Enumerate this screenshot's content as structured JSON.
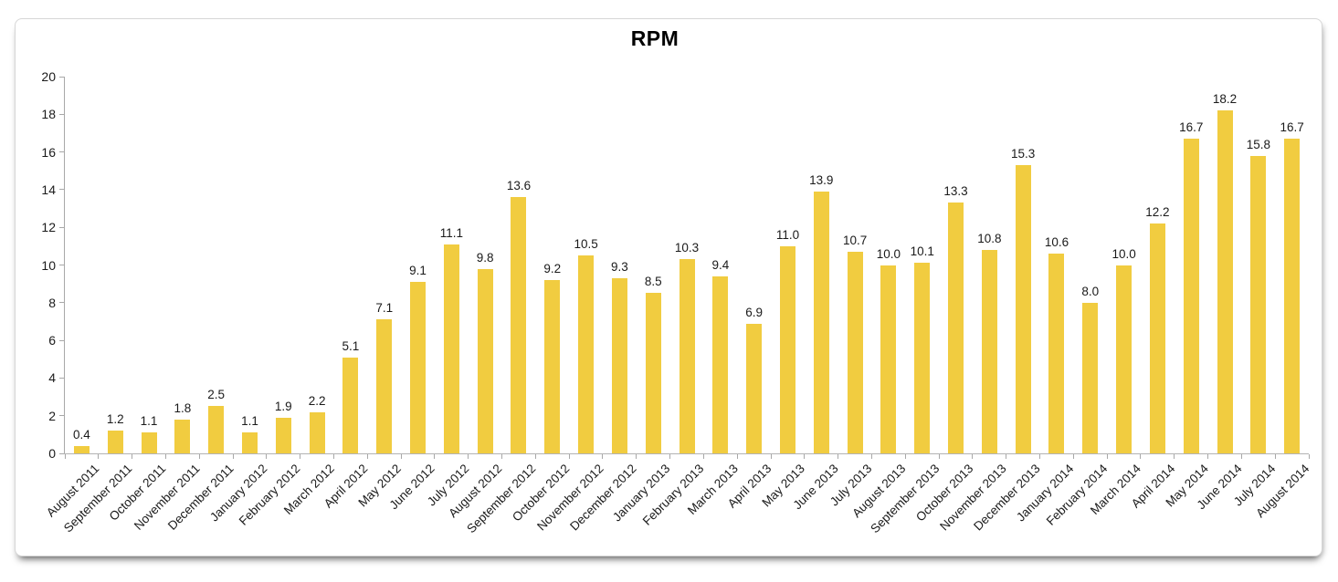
{
  "window": {
    "background": "#ffffff"
  },
  "header": {
    "title": "RPM"
  },
  "colors": {
    "bar": "#F1CC40",
    "axis": "#A8A8A8",
    "text": "#1A1A1A",
    "card_border": "#D6D6D6"
  },
  "chart_data": {
    "type": "bar",
    "title": "RPM",
    "xlabel": "",
    "ylabel": "",
    "ylim": [
      0,
      20
    ],
    "ytick_step": 2,
    "yticks": [
      0,
      2,
      4,
      6,
      8,
      10,
      12,
      14,
      16,
      18,
      20
    ],
    "grid": false,
    "legend": "none",
    "value_labels": true,
    "value_label_format": "0.0",
    "bar_color": "#F1CC40",
    "categories": [
      "August 2011",
      "September 2011",
      "October 2011",
      "November 2011",
      "December 2011",
      "January 2012",
      "February 2012",
      "March 2012",
      "April 2012",
      "May 2012",
      "June 2012",
      "July 2012",
      "August 2012",
      "September 2012",
      "October 2012",
      "November 2012",
      "December 2012",
      "January 2013",
      "February 2013",
      "March 2013",
      "April 2013",
      "May 2013",
      "June 2013",
      "July 2013",
      "August 2013",
      "September 2013",
      "October 2013",
      "November 2013",
      "December 2013",
      "January 2014",
      "February 2014",
      "March 2014",
      "April 2014",
      "May 2014",
      "June 2014",
      "July 2014",
      "August 2014"
    ],
    "values": [
      0.4,
      1.2,
      1.1,
      1.8,
      2.5,
      1.1,
      1.9,
      2.2,
      5.1,
      7.1,
      9.1,
      11.1,
      9.8,
      13.6,
      9.2,
      10.5,
      9.3,
      8.5,
      10.3,
      9.4,
      6.9,
      11.0,
      13.9,
      10.7,
      10.0,
      10.1,
      13.3,
      10.8,
      15.3,
      10.6,
      8.0,
      10.0,
      12.2,
      16.7,
      18.2,
      15.8,
      16.7
    ]
  }
}
